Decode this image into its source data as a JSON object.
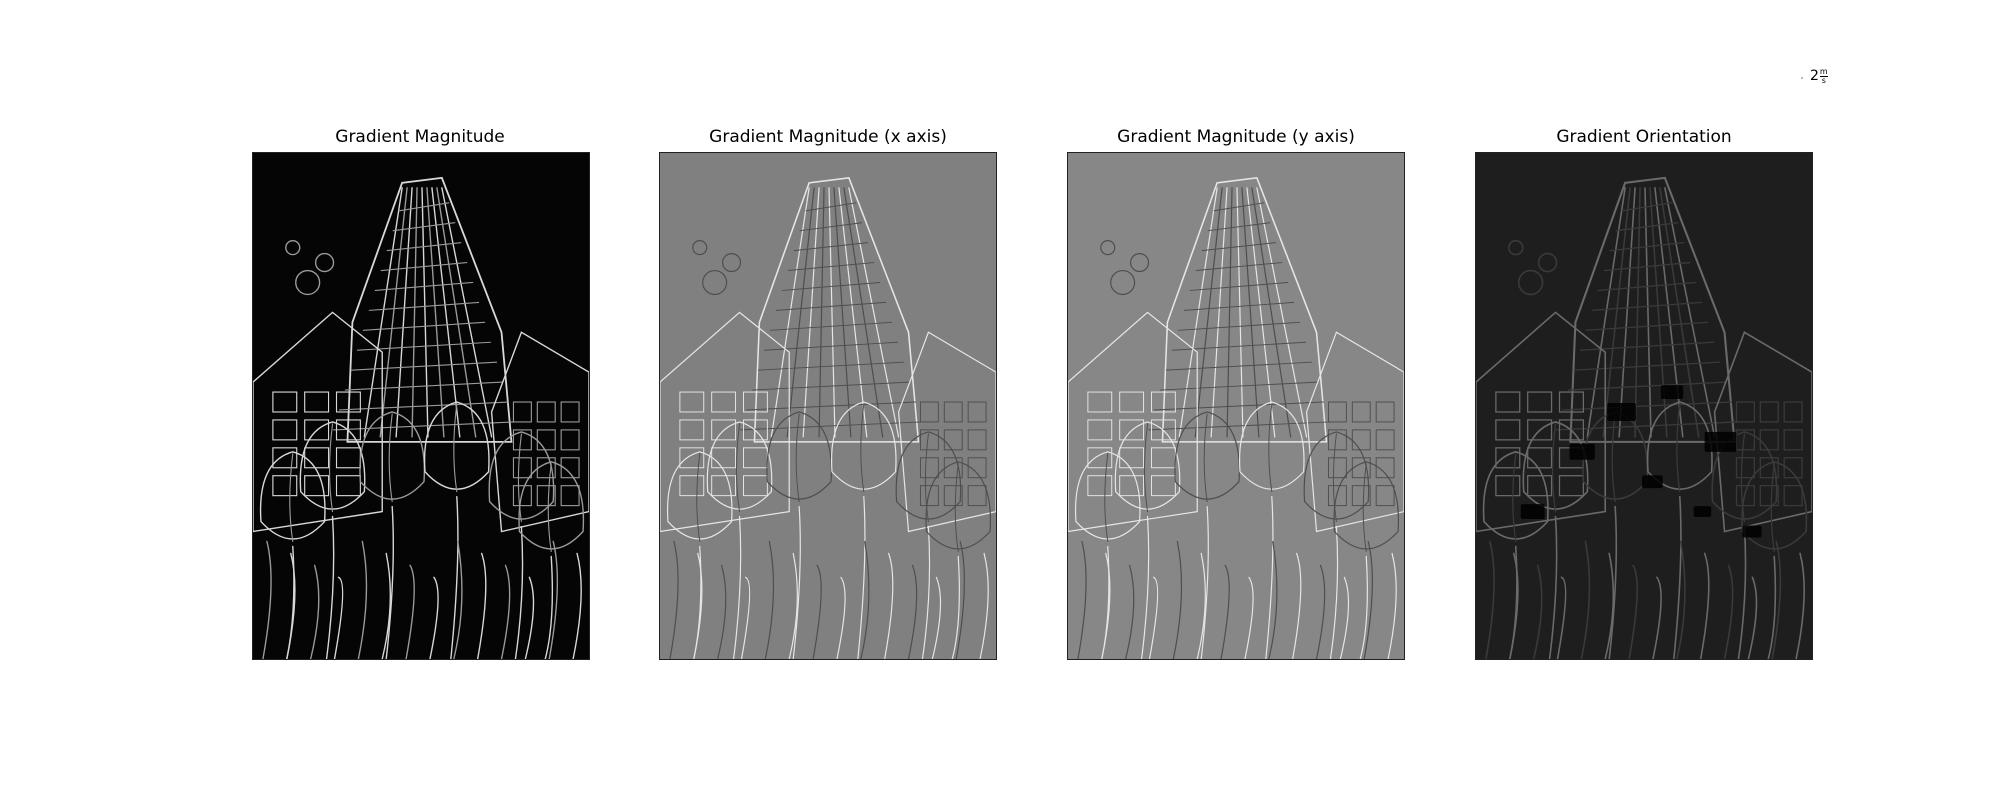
{
  "corner_label": {
    "base": "2",
    "num": "m",
    "den": "s"
  },
  "panels": [
    {
      "title": "Gradient Magnitude",
      "variant": "magnitude",
      "bg": "#050505"
    },
    {
      "title": "Gradient Magnitude (x axis)",
      "variant": "xaxis",
      "bg": "#808080"
    },
    {
      "title": "Gradient Magnitude (y axis)",
      "variant": "yaxis",
      "bg": "#878787"
    },
    {
      "title": "Gradient Orientation",
      "variant": "orientation",
      "bg": "#1e1e1e"
    }
  ]
}
